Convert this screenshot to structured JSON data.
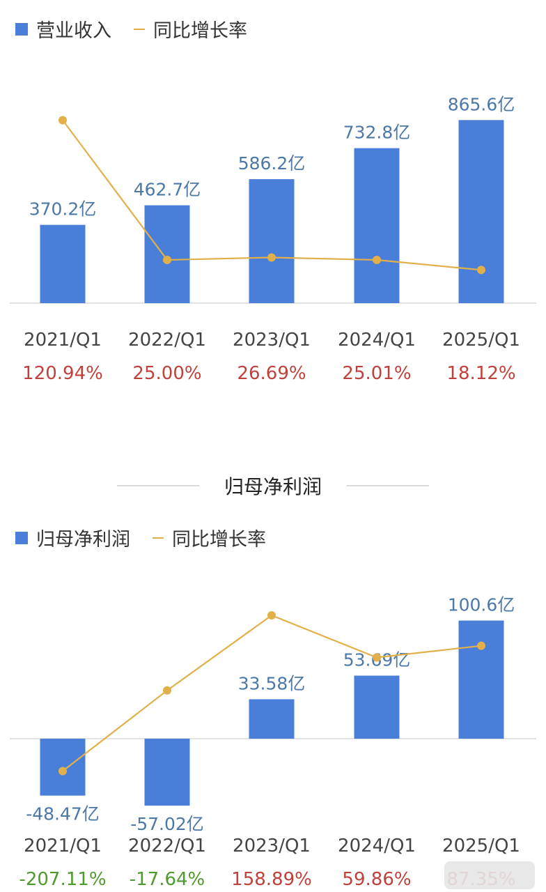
{
  "section_title": "归母净利润",
  "chart_data": [
    {
      "type": "bar",
      "legend": {
        "bar": "营业收入",
        "line": "同比增长率",
        "placement": "top-left"
      },
      "categories": [
        "2021/Q1",
        "2022/Q1",
        "2023/Q1",
        "2024/Q1",
        "2025/Q1"
      ],
      "series": [
        {
          "name": "营业收入",
          "type": "bar",
          "values": [
            370.2,
            462.7,
            586.2,
            732.8,
            865.6
          ],
          "labels": [
            "370.2亿",
            "462.7亿",
            "586.2亿",
            "732.8亿",
            "865.6亿"
          ]
        },
        {
          "name": "同比增长率",
          "type": "line",
          "values": [
            120.94,
            25.0,
            26.69,
            25.01,
            18.12
          ],
          "labels": [
            "120.94%",
            "25.00%",
            "26.69%",
            "25.01%",
            "18.12%"
          ]
        }
      ],
      "colors": {
        "bar": "#4a7fd9",
        "line": "#e2b04a",
        "bar_label": "#4c78a8",
        "positive": "#c0413b",
        "negative": "#4f9a2f"
      }
    },
    {
      "type": "bar",
      "legend": {
        "bar": "归母净利润",
        "line": "同比增长率",
        "placement": "top-left"
      },
      "categories": [
        "2021/Q1",
        "2022/Q1",
        "2023/Q1",
        "2024/Q1",
        "2025/Q1"
      ],
      "series": [
        {
          "name": "归母净利润",
          "type": "bar",
          "values": [
            -48.47,
            -57.02,
            33.58,
            53.69,
            100.6
          ],
          "labels": [
            "-48.47亿",
            "-57.02亿",
            "33.58亿",
            "53.69亿",
            "100.6亿"
          ]
        },
        {
          "name": "同比增长率",
          "type": "line",
          "values": [
            -207.11,
            -17.64,
            158.89,
            59.86,
            87.35
          ],
          "labels": [
            "-207.11%",
            "-17.64%",
            "158.89%",
            "59.86%",
            "87.35%"
          ]
        }
      ],
      "colors": {
        "bar": "#4a7fd9",
        "line": "#e2b04a",
        "bar_label": "#4c78a8",
        "positive": "#c0413b",
        "negative": "#4f9a2f"
      }
    }
  ]
}
